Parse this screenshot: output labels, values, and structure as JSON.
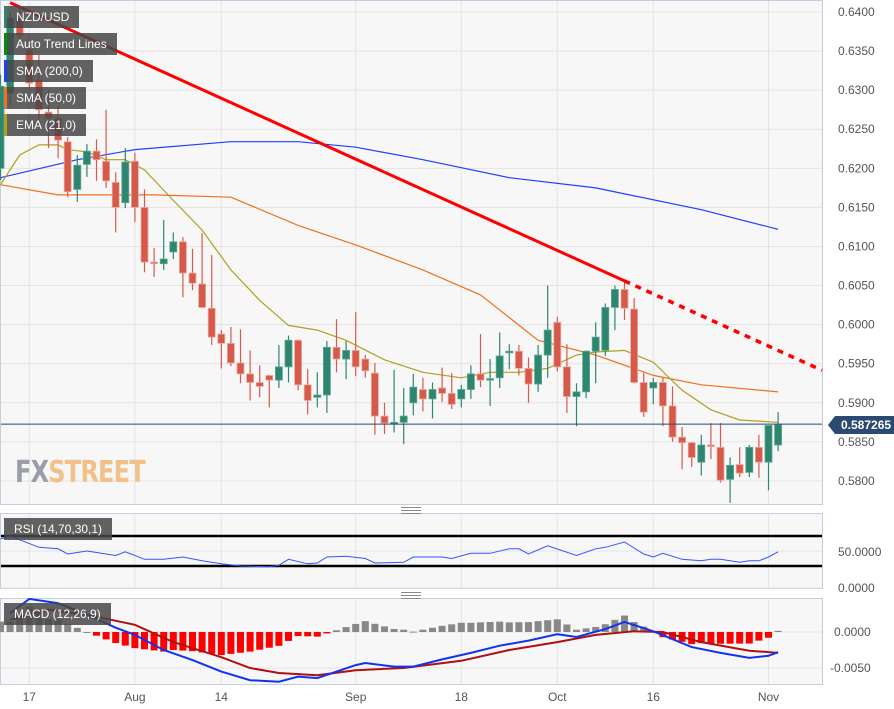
{
  "chart_data": {
    "type": "candlestick",
    "symbol": "NZD/USD",
    "legend": [
      {
        "label": "NZD/USD",
        "color": "#2e8570"
      },
      {
        "label": "Auto Trend Lines",
        "color": "#0a8a0a"
      },
      {
        "label": "SMA (200,0)",
        "color": "#1f3fff"
      },
      {
        "label": "SMA (50,0)",
        "color": "#f07020"
      },
      {
        "label": "EMA (21,0)",
        "color": "#b0a020"
      }
    ],
    "legend_placement": "top-left",
    "colors": {
      "up": "#2e8570",
      "down": "#d65a4a",
      "sma200": "#1f3fff",
      "sma50": "#f07020",
      "ema21": "#b0a020",
      "trend": "#ff0000",
      "price_line": "#2b4a72",
      "rsi": "#3355ff",
      "macd": "#1133ee",
      "signal": "#b01010",
      "hist_pos": "#888888",
      "hist_neg": "#ff0000"
    },
    "price_axis": {
      "ylim": [
        0.577,
        0.6415
      ],
      "ticks": [
        "0.6400",
        "0.6350",
        "0.6300",
        "0.6250",
        "0.6200",
        "0.6150",
        "0.6100",
        "0.6050",
        "0.6000",
        "0.5950",
        "0.5900",
        "0.5850",
        "0.5800"
      ]
    },
    "x_ticks": [
      {
        "date": "2023-07-17",
        "label": "17"
      },
      {
        "date": "2023-08-01",
        "label": "Aug"
      },
      {
        "date": "2023-08-14",
        "label": "14"
      },
      {
        "date": "2023-09-01",
        "label": "Sep"
      },
      {
        "date": "2023-09-18",
        "label": "18"
      },
      {
        "date": "2023-10-02",
        "label": "Oct"
      },
      {
        "date": "2023-10-16",
        "label": "16"
      },
      {
        "date": "2023-11-01",
        "label": "Nov"
      }
    ],
    "grid": true,
    "current_price": "0.587265",
    "columns": [
      "date",
      "open",
      "high",
      "low",
      "close"
    ],
    "candles": [
      [
        "2023-07-12",
        0.62,
        0.632,
        0.6185,
        0.6305
      ],
      [
        "2023-07-13",
        0.6296,
        0.64,
        0.628,
        0.6392
      ],
      [
        "2023-07-14",
        0.6392,
        0.6405,
        0.636,
        0.637
      ],
      [
        "2023-07-17",
        0.6352,
        0.6365,
        0.63,
        0.6309
      ],
      [
        "2023-07-18",
        0.6313,
        0.6345,
        0.6255,
        0.6275
      ],
      [
        "2023-07-19",
        0.6272,
        0.63,
        0.6226,
        0.6264
      ],
      [
        "2023-07-20",
        0.6264,
        0.628,
        0.6213,
        0.6236
      ],
      [
        "2023-07-21",
        0.6234,
        0.624,
        0.6163,
        0.617
      ],
      [
        "2023-07-24",
        0.6173,
        0.6217,
        0.6157,
        0.6204
      ],
      [
        "2023-07-25",
        0.6205,
        0.6231,
        0.6189,
        0.6222
      ],
      [
        "2023-07-26",
        0.6222,
        0.6237,
        0.6184,
        0.6211
      ],
      [
        "2023-07-27",
        0.6209,
        0.6275,
        0.6175,
        0.6184
      ],
      [
        "2023-07-28",
        0.6182,
        0.6195,
        0.6118,
        0.615
      ],
      [
        "2023-07-31",
        0.6156,
        0.6226,
        0.6149,
        0.6208
      ],
      [
        "2023-08-01",
        0.6209,
        0.622,
        0.6131,
        0.615
      ],
      [
        "2023-08-02",
        0.615,
        0.6173,
        0.6067,
        0.608
      ],
      [
        "2023-08-03",
        0.608,
        0.6098,
        0.6061,
        0.6078
      ],
      [
        "2023-08-04",
        0.6078,
        0.6134,
        0.607,
        0.6084
      ],
      [
        "2023-08-07",
        0.6093,
        0.6118,
        0.6084,
        0.6106
      ],
      [
        "2023-08-08",
        0.6106,
        0.6112,
        0.6035,
        0.6066
      ],
      [
        "2023-08-09",
        0.6066,
        0.6097,
        0.6044,
        0.6053
      ],
      [
        "2023-08-10",
        0.6052,
        0.6117,
        0.6021,
        0.6022
      ],
      [
        "2023-08-11",
        0.6021,
        0.6089,
        0.5974,
        0.5984
      ],
      [
        "2023-08-14",
        0.5988,
        0.5993,
        0.5944,
        0.5976
      ],
      [
        "2023-08-15",
        0.5976,
        0.5997,
        0.5947,
        0.5951
      ],
      [
        "2023-08-16",
        0.5951,
        0.5994,
        0.5925,
        0.5937
      ],
      [
        "2023-08-17",
        0.5937,
        0.5967,
        0.5903,
        0.5926
      ],
      [
        "2023-08-18",
        0.5926,
        0.5948,
        0.5907,
        0.5921
      ],
      [
        "2023-08-21",
        0.5935,
        0.5936,
        0.5894,
        0.5929
      ],
      [
        "2023-08-22",
        0.5929,
        0.5974,
        0.5919,
        0.5946
      ],
      [
        "2023-08-23",
        0.5946,
        0.5986,
        0.5926,
        0.598
      ],
      [
        "2023-08-24",
        0.598,
        0.5981,
        0.5916,
        0.5923
      ],
      [
        "2023-08-25",
        0.5923,
        0.5943,
        0.5885,
        0.5903
      ],
      [
        "2023-08-28",
        0.5907,
        0.5939,
        0.5894,
        0.591
      ],
      [
        "2023-08-29",
        0.591,
        0.5979,
        0.5887,
        0.5971
      ],
      [
        "2023-08-30",
        0.5971,
        0.6007,
        0.5939,
        0.5956
      ],
      [
        "2023-08-31",
        0.5956,
        0.5979,
        0.593,
        0.5967
      ],
      [
        "2023-09-01",
        0.5967,
        0.6016,
        0.5934,
        0.5946
      ],
      [
        "2023-09-04",
        0.5956,
        0.5961,
        0.5932,
        0.5941
      ],
      [
        "2023-09-05",
        0.5938,
        0.5951,
        0.5859,
        0.5883
      ],
      [
        "2023-09-06",
        0.5883,
        0.59,
        0.586,
        0.5874
      ],
      [
        "2023-09-07",
        0.5873,
        0.5942,
        0.5862,
        0.5875
      ],
      [
        "2023-09-08",
        0.5875,
        0.5919,
        0.5847,
        0.5883
      ],
      [
        "2023-09-11",
        0.59,
        0.5937,
        0.5884,
        0.592
      ],
      [
        "2023-09-12",
        0.5917,
        0.5932,
        0.5889,
        0.5905
      ],
      [
        "2023-09-13",
        0.5905,
        0.5926,
        0.588,
        0.5917
      ],
      [
        "2023-09-14",
        0.5919,
        0.5945,
        0.5901,
        0.5912
      ],
      [
        "2023-09-15",
        0.5912,
        0.5938,
        0.5892,
        0.5898
      ],
      [
        "2023-09-18",
        0.5905,
        0.5923,
        0.5894,
        0.5917
      ],
      [
        "2023-09-19",
        0.5917,
        0.5948,
        0.5905,
        0.5937
      ],
      [
        "2023-09-20",
        0.5937,
        0.5988,
        0.592,
        0.5929
      ],
      [
        "2023-09-21",
        0.5929,
        0.5956,
        0.5896,
        0.5931
      ],
      [
        "2023-09-22",
        0.5932,
        0.599,
        0.5919,
        0.596
      ],
      [
        "2023-09-25",
        0.5964,
        0.5975,
        0.5943,
        0.5966
      ],
      [
        "2023-09-26",
        0.5966,
        0.5974,
        0.5935,
        0.5944
      ],
      [
        "2023-09-27",
        0.5944,
        0.5958,
        0.59,
        0.5924
      ],
      [
        "2023-09-28",
        0.5924,
        0.5974,
        0.5914,
        0.5961
      ],
      [
        "2023-09-29",
        0.5961,
        0.605,
        0.5932,
        0.5993
      ],
      [
        "2023-10-02",
        0.6003,
        0.601,
        0.594,
        0.5946
      ],
      [
        "2023-10-03",
        0.5946,
        0.5975,
        0.5887,
        0.5908
      ],
      [
        "2023-10-04",
        0.5908,
        0.5925,
        0.587,
        0.5914
      ],
      [
        "2023-10-05",
        0.5914,
        0.5967,
        0.5906,
        0.5966
      ],
      [
        "2023-10-06",
        0.5966,
        0.6003,
        0.5925,
        0.5984
      ],
      [
        "2023-10-09",
        0.5967,
        0.6027,
        0.596,
        0.6022
      ],
      [
        "2023-10-10",
        0.6022,
        0.605,
        0.5993,
        0.6045
      ],
      [
        "2023-10-11",
        0.6045,
        0.6058,
        0.6006,
        0.6021
      ],
      [
        "2023-10-12",
        0.602,
        0.6034,
        0.5925,
        0.5926
      ],
      [
        "2023-10-13",
        0.5926,
        0.5938,
        0.5882,
        0.5888
      ],
      [
        "2023-10-16",
        0.5919,
        0.5932,
        0.5898,
        0.5926
      ],
      [
        "2023-10-17",
        0.5926,
        0.5932,
        0.587,
        0.5896
      ],
      [
        "2023-10-18",
        0.5896,
        0.5921,
        0.585,
        0.5856
      ],
      [
        "2023-10-19",
        0.5856,
        0.5869,
        0.5815,
        0.5849
      ],
      [
        "2023-10-20",
        0.5849,
        0.585,
        0.5818,
        0.583
      ],
      [
        "2023-10-23",
        0.5824,
        0.5859,
        0.5807,
        0.5846
      ],
      [
        "2023-10-24",
        0.5846,
        0.5874,
        0.5828,
        0.5844
      ],
      [
        "2023-10-25",
        0.5843,
        0.5874,
        0.5798,
        0.5801
      ],
      [
        "2023-10-26",
        0.5802,
        0.583,
        0.5772,
        0.582
      ],
      [
        "2023-10-27",
        0.5821,
        0.5843,
        0.5805,
        0.581
      ],
      [
        "2023-10-30",
        0.5811,
        0.5846,
        0.5805,
        0.5843
      ],
      [
        "2023-10-31",
        0.5843,
        0.5859,
        0.5804,
        0.5824
      ],
      [
        "2023-11-01",
        0.5824,
        0.5871,
        0.5788,
        0.5871
      ],
      [
        "2023-11-02",
        0.5846,
        0.5888,
        0.5838,
        0.5872
      ]
    ],
    "sma200": [
      [
        "2023-07-12",
        0.6188
      ],
      [
        "2023-07-24",
        0.6211
      ],
      [
        "2023-08-01",
        0.6224
      ],
      [
        "2023-08-15",
        0.6234
      ],
      [
        "2023-08-24",
        0.6234
      ],
      [
        "2023-09-01",
        0.6227
      ],
      [
        "2023-09-12",
        0.6211
      ],
      [
        "2023-09-25",
        0.6188
      ],
      [
        "2023-10-06",
        0.6175
      ],
      [
        "2023-10-23",
        0.6147
      ],
      [
        "2023-11-02",
        0.6122
      ]
    ],
    "sma50": [
      [
        "2023-07-12",
        0.6179
      ],
      [
        "2023-07-20",
        0.6166
      ],
      [
        "2023-08-03",
        0.6166
      ],
      [
        "2023-08-15",
        0.6163
      ],
      [
        "2023-08-24",
        0.6127
      ],
      [
        "2023-09-01",
        0.6102
      ],
      [
        "2023-09-12",
        0.607
      ],
      [
        "2023-09-20",
        0.6038
      ],
      [
        "2023-09-28",
        0.598
      ],
      [
        "2023-10-06",
        0.5961
      ],
      [
        "2023-10-16",
        0.5935
      ],
      [
        "2023-10-23",
        0.5923
      ],
      [
        "2023-11-02",
        0.5914
      ]
    ],
    "ema21": [
      [
        "2023-07-12",
        0.6179
      ],
      [
        "2023-07-14",
        0.6217
      ],
      [
        "2023-07-18",
        0.623
      ],
      [
        "2023-07-20",
        0.623
      ],
      [
        "2023-07-21",
        0.6224
      ],
      [
        "2023-07-25",
        0.6221
      ],
      [
        "2023-07-27",
        0.6211
      ],
      [
        "2023-07-31",
        0.6211
      ],
      [
        "2023-08-02",
        0.6198
      ],
      [
        "2023-08-07",
        0.6159
      ],
      [
        "2023-08-10",
        0.6121
      ],
      [
        "2023-08-15",
        0.607
      ],
      [
        "2023-08-18",
        0.6031
      ],
      [
        "2023-08-23",
        0.5999
      ],
      [
        "2023-08-28",
        0.5993
      ],
      [
        "2023-08-31",
        0.598
      ],
      [
        "2023-09-06",
        0.5955
      ],
      [
        "2023-09-12",
        0.5939
      ],
      [
        "2023-09-18",
        0.5932
      ],
      [
        "2023-09-21",
        0.5939
      ],
      [
        "2023-09-26",
        0.5939
      ],
      [
        "2023-09-29",
        0.5944
      ],
      [
        "2023-10-04",
        0.5961
      ],
      [
        "2023-10-06",
        0.5965
      ],
      [
        "2023-10-11",
        0.5967
      ],
      [
        "2023-10-16",
        0.5952
      ],
      [
        "2023-10-19",
        0.5916
      ],
      [
        "2023-10-24",
        0.5891
      ],
      [
        "2023-10-27",
        0.5878
      ],
      [
        "2023-11-02",
        0.5875
      ]
    ],
    "trend_line": {
      "start": [
        "2023-07-13",
        0.6412
      ],
      "end": [
        "2023-10-11",
        0.6056
      ],
      "projection": "dotted"
    },
    "rsi": {
      "label": "RSI (14,70,30,1)",
      "levels": [
        70,
        30
      ],
      "ylim": [
        0,
        100
      ],
      "ticks": [
        "50.0000",
        "0.0000"
      ],
      "values": [
        [
          "2023-07-12",
          66
        ],
        [
          "2023-07-13",
          70
        ],
        [
          "2023-07-18",
          55
        ],
        [
          "2023-07-20",
          53
        ],
        [
          "2023-07-21",
          46
        ],
        [
          "2023-07-25",
          50
        ],
        [
          "2023-07-28",
          44
        ],
        [
          "2023-07-31",
          49
        ],
        [
          "2023-08-02",
          39
        ],
        [
          "2023-08-04",
          39
        ],
        [
          "2023-08-08",
          42
        ],
        [
          "2023-08-10",
          37
        ],
        [
          "2023-08-14",
          33
        ],
        [
          "2023-08-16",
          30
        ],
        [
          "2023-08-21",
          29
        ],
        [
          "2023-08-22",
          31
        ],
        [
          "2023-08-23",
          39
        ],
        [
          "2023-08-25",
          33
        ],
        [
          "2023-08-28",
          34
        ],
        [
          "2023-08-29",
          42
        ],
        [
          "2023-08-31",
          43
        ],
        [
          "2023-09-04",
          40
        ],
        [
          "2023-09-05",
          34
        ],
        [
          "2023-09-08",
          35
        ],
        [
          "2023-09-11",
          42
        ],
        [
          "2023-09-14",
          42
        ],
        [
          "2023-09-15",
          40
        ],
        [
          "2023-09-19",
          47
        ],
        [
          "2023-09-21",
          47
        ],
        [
          "2023-09-25",
          53
        ],
        [
          "2023-09-26",
          53
        ],
        [
          "2023-09-27",
          46
        ],
        [
          "2023-09-29",
          57
        ],
        [
          "2023-10-04",
          44
        ],
        [
          "2023-10-06",
          53
        ],
        [
          "2023-10-09",
          55
        ],
        [
          "2023-10-11",
          62
        ],
        [
          "2023-10-13",
          46
        ],
        [
          "2023-10-16",
          42
        ],
        [
          "2023-10-17",
          47
        ],
        [
          "2023-10-19",
          39
        ],
        [
          "2023-10-23",
          37
        ],
        [
          "2023-10-24",
          39
        ],
        [
          "2023-10-25",
          39
        ],
        [
          "2023-10-27",
          35
        ],
        [
          "2023-10-30",
          37
        ],
        [
          "2023-10-31",
          37
        ],
        [
          "2023-11-01",
          42
        ],
        [
          "2023-11-02",
          49
        ]
      ]
    },
    "macd": {
      "label": "MACD (12,26,9)",
      "ylim": [
        -0.0071,
        0.0047
      ],
      "ticks": [
        "0.0000",
        "-0.0050"
      ],
      "macd": [
        [
          "2023-07-13",
          0.0026
        ],
        [
          "2023-07-17",
          0.0046
        ],
        [
          "2023-07-20",
          0.004
        ],
        [
          "2023-07-25",
          0.0024
        ],
        [
          "2023-07-28",
          0.0006
        ],
        [
          "2023-08-01",
          -0.0004
        ],
        [
          "2023-08-04",
          -0.0025
        ],
        [
          "2023-08-09",
          -0.0039
        ],
        [
          "2023-08-14",
          -0.0055
        ],
        [
          "2023-08-17",
          -0.0067
        ],
        [
          "2023-08-22",
          -0.0069
        ],
        [
          "2023-08-24",
          -0.0062
        ],
        [
          "2023-08-28",
          -0.0064
        ],
        [
          "2023-09-01",
          -0.0046
        ],
        [
          "2023-09-04",
          -0.0043
        ],
        [
          "2023-09-07",
          -0.0048
        ],
        [
          "2023-09-11",
          -0.0048
        ],
        [
          "2023-09-14",
          -0.0038
        ],
        [
          "2023-09-19",
          -0.0029
        ],
        [
          "2023-09-22",
          -0.0019
        ],
        [
          "2023-09-27",
          -0.0012
        ],
        [
          "2023-10-02",
          -0.0003
        ],
        [
          "2023-10-04",
          -0.0007
        ],
        [
          "2023-10-09",
          0.0004
        ],
        [
          "2023-10-11",
          0.0014
        ],
        [
          "2023-10-16",
          0.0001
        ],
        [
          "2023-10-20",
          -0.0021
        ],
        [
          "2023-10-25",
          -0.0029
        ],
        [
          "2023-10-30",
          -0.0036
        ],
        [
          "2023-11-01",
          -0.0033
        ],
        [
          "2023-11-02",
          -0.0028
        ]
      ],
      "signal": [
        [
          "2023-07-13",
          0.0017
        ],
        [
          "2023-07-19",
          0.0031
        ],
        [
          "2023-07-25",
          0.0024
        ],
        [
          "2023-08-01",
          0.001
        ],
        [
          "2023-08-07",
          -0.0014
        ],
        [
          "2023-08-14",
          -0.0035
        ],
        [
          "2023-08-17",
          -0.005
        ],
        [
          "2023-08-22",
          -0.0057
        ],
        [
          "2023-08-28",
          -0.006
        ],
        [
          "2023-09-01",
          -0.0053
        ],
        [
          "2023-09-08",
          -0.005
        ],
        [
          "2023-09-18",
          -0.004
        ],
        [
          "2023-09-25",
          -0.0025
        ],
        [
          "2023-10-02",
          -0.0014
        ],
        [
          "2023-10-06",
          -0.0004
        ],
        [
          "2023-10-12",
          0.0001
        ],
        [
          "2023-10-17",
          0.0
        ],
        [
          "2023-10-23",
          -0.0014
        ],
        [
          "2023-10-30",
          -0.0026
        ],
        [
          "2023-11-02",
          -0.0029
        ]
      ]
    },
    "watermark": {
      "part1": "FX",
      "part2": "STREET"
    }
  }
}
